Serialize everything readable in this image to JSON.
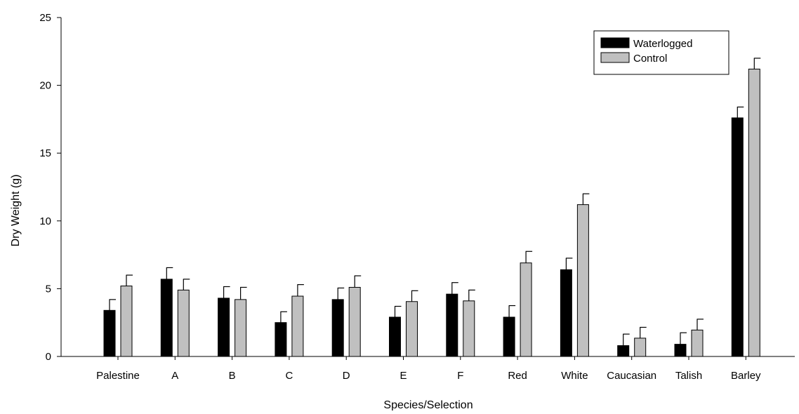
{
  "chart_data": {
    "type": "bar",
    "title": "",
    "xlabel": "Species/Selection",
    "ylabel": "Dry Weight (g)",
    "ylim": [
      0,
      25
    ],
    "yticks": [
      0,
      5,
      10,
      15,
      20,
      25
    ],
    "grid": false,
    "legend_position": "top-right",
    "categories": [
      "Palestine",
      "A",
      "B",
      "C",
      "D",
      "E",
      "F",
      "Red",
      "White",
      "Caucasian",
      "Talish",
      "Barley"
    ],
    "series": [
      {
        "name": "Waterlogged",
        "color": "#000000",
        "values": [
          3.4,
          5.7,
          4.3,
          2.5,
          4.2,
          2.9,
          4.6,
          2.9,
          6.4,
          0.8,
          0.9,
          17.6
        ],
        "errors": [
          0.8,
          0.85,
          0.85,
          0.8,
          0.85,
          0.8,
          0.85,
          0.85,
          0.85,
          0.85,
          0.85,
          0.8
        ]
      },
      {
        "name": "Control",
        "color": "#c0c0c0",
        "values": [
          5.2,
          4.9,
          4.2,
          4.45,
          5.1,
          4.05,
          4.1,
          6.9,
          11.2,
          1.35,
          1.95,
          21.2
        ],
        "errors": [
          0.8,
          0.8,
          0.9,
          0.85,
          0.85,
          0.8,
          0.8,
          0.85,
          0.8,
          0.8,
          0.8,
          0.8
        ]
      }
    ]
  }
}
